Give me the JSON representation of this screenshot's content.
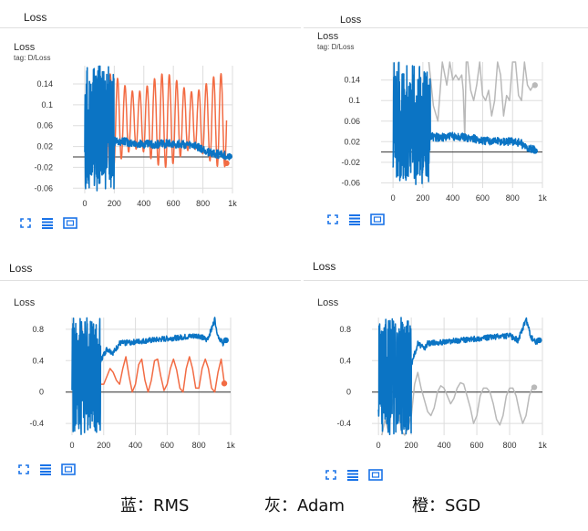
{
  "colors": {
    "rms": "#0b74c4",
    "sgd": "#f26b43",
    "adam": "#b9b9b9",
    "grid": "#dddddd",
    "axis": "#333333"
  },
  "section_titles": [
    "Loss",
    "Loss",
    "Loss",
    "Loss"
  ],
  "partial_title": "Loss",
  "cards": [
    {
      "title": "Loss",
      "tag": "tag: D/Loss"
    },
    {
      "title": "Loss",
      "tag": "tag: D/Loss"
    },
    {
      "title": "Loss",
      "tag": ""
    },
    {
      "title": "Loss",
      "tag": ""
    }
  ],
  "controls": [
    "fit-domain-icon",
    "toggle-log-icon",
    "expand-icon"
  ],
  "caption": [
    {
      "label": "蓝：RMS"
    },
    {
      "label": "灰：Adam"
    },
    {
      "label": "橙：SGD"
    }
  ],
  "chart_data": [
    {
      "type": "line",
      "title": "Loss",
      "grid": true,
      "xlim": [
        -80,
        1000
      ],
      "ylim": [
        -0.07,
        0.175
      ],
      "xticks": [
        0,
        200,
        400,
        600,
        800,
        1000
      ],
      "xtick_labels": [
        "0",
        "200",
        "400",
        "600",
        "800",
        "1k"
      ],
      "yticks": [
        -0.06,
        -0.02,
        0.02,
        0.06,
        0.1,
        0.14
      ],
      "ytick_labels": [
        "-0.06",
        "-0.02",
        "0.02",
        "0.06",
        "0.1",
        "0.14"
      ],
      "series": [
        {
          "name": "SGD",
          "color_key": "sgd",
          "kind": "osc",
          "x_start": 60,
          "x_end": 960,
          "period": 50,
          "center": 0.07,
          "amp": 0.09,
          "amp_min": 0.055,
          "end": [
            960,
            -0.012
          ],
          "noise": false
        },
        {
          "name": "RMS",
          "color_key": "rms",
          "kind": "wild",
          "x_start": 0,
          "x_end": 200,
          "spike_lo": -0.065,
          "spike_hi": 0.175,
          "x": [
            200,
            260,
            350,
            450,
            550,
            650,
            750,
            850,
            950,
            980
          ],
          "y": [
            0.03,
            0.03,
            0.025,
            0.024,
            0.025,
            0.025,
            0.02,
            0.008,
            0.003,
            0.001
          ],
          "noise_amp": 0.008,
          "end": [
            980,
            0.001
          ]
        }
      ]
    },
    {
      "type": "line",
      "title": "Loss",
      "grid": true,
      "xlim": [
        -80,
        1000
      ],
      "ylim": [
        -0.07,
        0.175
      ],
      "xticks": [
        0,
        200,
        400,
        600,
        800,
        1000
      ],
      "xtick_labels": [
        "0",
        "200",
        "400",
        "600",
        "800",
        "1k"
      ],
      "yticks": [
        -0.06,
        -0.02,
        0.02,
        0.06,
        0.1,
        0.14
      ],
      "ytick_labels": [
        "-0.06",
        "-0.02",
        "0.02",
        "0.06",
        "0.1",
        "0.14"
      ],
      "series": [
        {
          "name": "Adam",
          "color_key": "adam",
          "kind": "path",
          "x": [
            240,
            270,
            300,
            330,
            360,
            380,
            400,
            420,
            440,
            460,
            470,
            480,
            490,
            500,
            520,
            540,
            560,
            580,
            600,
            620,
            640,
            660,
            680,
            700,
            720,
            740,
            760,
            780,
            800,
            820,
            840,
            860,
            880,
            900,
            920,
            940
          ],
          "y": [
            0.175,
            0.09,
            0.06,
            0.175,
            0.13,
            0.175,
            0.14,
            0.15,
            0.14,
            0.15,
            0.12,
            0.03,
            0.175,
            0.175,
            0.12,
            0.1,
            0.13,
            0.175,
            0.11,
            0.1,
            0.12,
            0.07,
            0.1,
            0.175,
            0.15,
            0.07,
            0.11,
            0.1,
            0.175,
            0.175,
            0.11,
            0.1,
            0.175,
            0.13,
            0.12,
            0.13
          ],
          "end": [
            950,
            0.13
          ]
        },
        {
          "name": "RMS",
          "color_key": "rms",
          "kind": "wild",
          "x_start": 0,
          "x_end": 250,
          "spike_lo": -0.065,
          "spike_hi": 0.175,
          "x": [
            250,
            300,
            400,
            500,
            600,
            700,
            750,
            800,
            850,
            900,
            950
          ],
          "y": [
            0.03,
            0.028,
            0.03,
            0.028,
            0.022,
            0.022,
            0.02,
            0.021,
            0.018,
            0.008,
            0.003
          ],
          "noise_amp": 0.008,
          "end": [
            950,
            0.002
          ]
        }
      ]
    },
    {
      "type": "line",
      "title": "Loss",
      "grid": true,
      "xlim": [
        -40,
        1000
      ],
      "ylim": [
        -0.55,
        0.95
      ],
      "xticks": [
        0,
        200,
        400,
        600,
        800,
        1000
      ],
      "xtick_labels": [
        "0",
        "200",
        "400",
        "600",
        "800",
        "1k"
      ],
      "yticks": [
        -0.4,
        0,
        0.4,
        0.8
      ],
      "ytick_labels": [
        "-0.4",
        "0",
        "0.4",
        "0.8"
      ],
      "series": [
        {
          "name": "SGD",
          "color_key": "sgd",
          "kind": "path",
          "x": [
            20,
            40,
            60,
            80,
            100,
            120,
            140,
            160,
            180,
            200,
            220,
            240,
            260,
            280,
            300,
            320,
            340,
            360,
            380,
            400,
            420,
            440,
            460,
            480,
            500,
            520,
            540,
            560,
            580,
            600,
            620,
            640,
            660,
            680,
            700,
            720,
            740,
            760,
            780,
            800,
            820,
            840,
            860,
            880,
            900,
            920,
            940,
            960
          ],
          "y": [
            -0.1,
            0.6,
            0.85,
            0.3,
            -0.1,
            0.5,
            0.7,
            0.3,
            0.1,
            0.1,
            0.2,
            0.3,
            0.25,
            0.15,
            0.1,
            0.3,
            0.45,
            0.2,
            0.0,
            0.1,
            0.35,
            0.42,
            0.15,
            0.0,
            0.15,
            0.4,
            0.42,
            0.2,
            0.02,
            0.1,
            0.3,
            0.42,
            0.28,
            0.05,
            0.0,
            0.3,
            0.45,
            0.3,
            0.05,
            0.05,
            0.3,
            0.42,
            0.3,
            0.05,
            0.0,
            0.25,
            0.42,
            0.12
          ],
          "end": [
            960,
            0.11
          ]
        },
        {
          "name": "RMS",
          "color_key": "rms",
          "kind": "wild",
          "x_start": 0,
          "x_end": 180,
          "spike_lo": -0.55,
          "spike_hi": 0.95,
          "x": [
            180,
            220,
            260,
            300,
            400,
            500,
            600,
            700,
            800,
            850,
            880,
            900,
            920,
            950,
            970
          ],
          "y": [
            0.4,
            0.55,
            0.5,
            0.62,
            0.64,
            0.66,
            0.68,
            0.7,
            0.72,
            0.66,
            0.8,
            0.93,
            0.72,
            0.62,
            0.66
          ],
          "noise_amp": 0.035,
          "end": [
            970,
            0.66
          ]
        }
      ]
    },
    {
      "type": "line",
      "title": "Loss",
      "grid": true,
      "xlim": [
        -40,
        1000
      ],
      "ylim": [
        -0.55,
        0.95
      ],
      "xticks": [
        0,
        200,
        400,
        600,
        800,
        1000
      ],
      "xtick_labels": [
        "0",
        "200",
        "400",
        "600",
        "800",
        "1k"
      ],
      "yticks": [
        -0.4,
        0,
        0.4,
        0.8
      ],
      "ytick_labels": [
        "-0.4",
        "0",
        "0.4",
        "0.8"
      ],
      "series": [
        {
          "name": "Adam",
          "color_key": "adam",
          "kind": "path",
          "x": [
            20,
            40,
            60,
            80,
            100,
            120,
            140,
            160,
            180,
            200,
            220,
            240,
            260,
            280,
            300,
            320,
            340,
            360,
            380,
            400,
            420,
            440,
            460,
            480,
            500,
            520,
            540,
            560,
            580,
            600,
            620,
            640,
            660,
            680,
            700,
            720,
            740,
            760,
            780,
            800,
            820,
            840,
            860,
            880,
            900,
            920,
            940
          ],
          "y": [
            -0.55,
            -0.35,
            -0.5,
            -0.2,
            0.0,
            -0.2,
            -0.5,
            -0.55,
            -0.45,
            -0.3,
            0.1,
            0.25,
            0.05,
            -0.1,
            -0.25,
            -0.3,
            -0.2,
            0.0,
            0.08,
            0.05,
            -0.05,
            -0.15,
            -0.08,
            0.05,
            0.12,
            0.1,
            -0.05,
            -0.2,
            -0.4,
            -0.3,
            -0.05,
            0.05,
            0.05,
            0.0,
            -0.15,
            -0.35,
            -0.42,
            -0.3,
            -0.05,
            0.05,
            0.05,
            -0.05,
            -0.25,
            -0.4,
            -0.3,
            -0.05,
            0.06
          ],
          "end": [
            950,
            0.06
          ]
        },
        {
          "name": "RMS",
          "color_key": "rms",
          "kind": "wild",
          "x_start": 0,
          "x_end": 200,
          "spike_lo": -0.55,
          "spike_hi": 0.95,
          "x": [
            200,
            240,
            280,
            300,
            400,
            500,
            600,
            700,
            800,
            850,
            880,
            900,
            930,
            960,
            980
          ],
          "y": [
            0.35,
            0.62,
            0.55,
            0.62,
            0.64,
            0.66,
            0.68,
            0.7,
            0.72,
            0.66,
            0.8,
            0.93,
            0.7,
            0.63,
            0.66
          ],
          "noise_amp": 0.035,
          "end": [
            980,
            0.66
          ]
        }
      ]
    }
  ]
}
